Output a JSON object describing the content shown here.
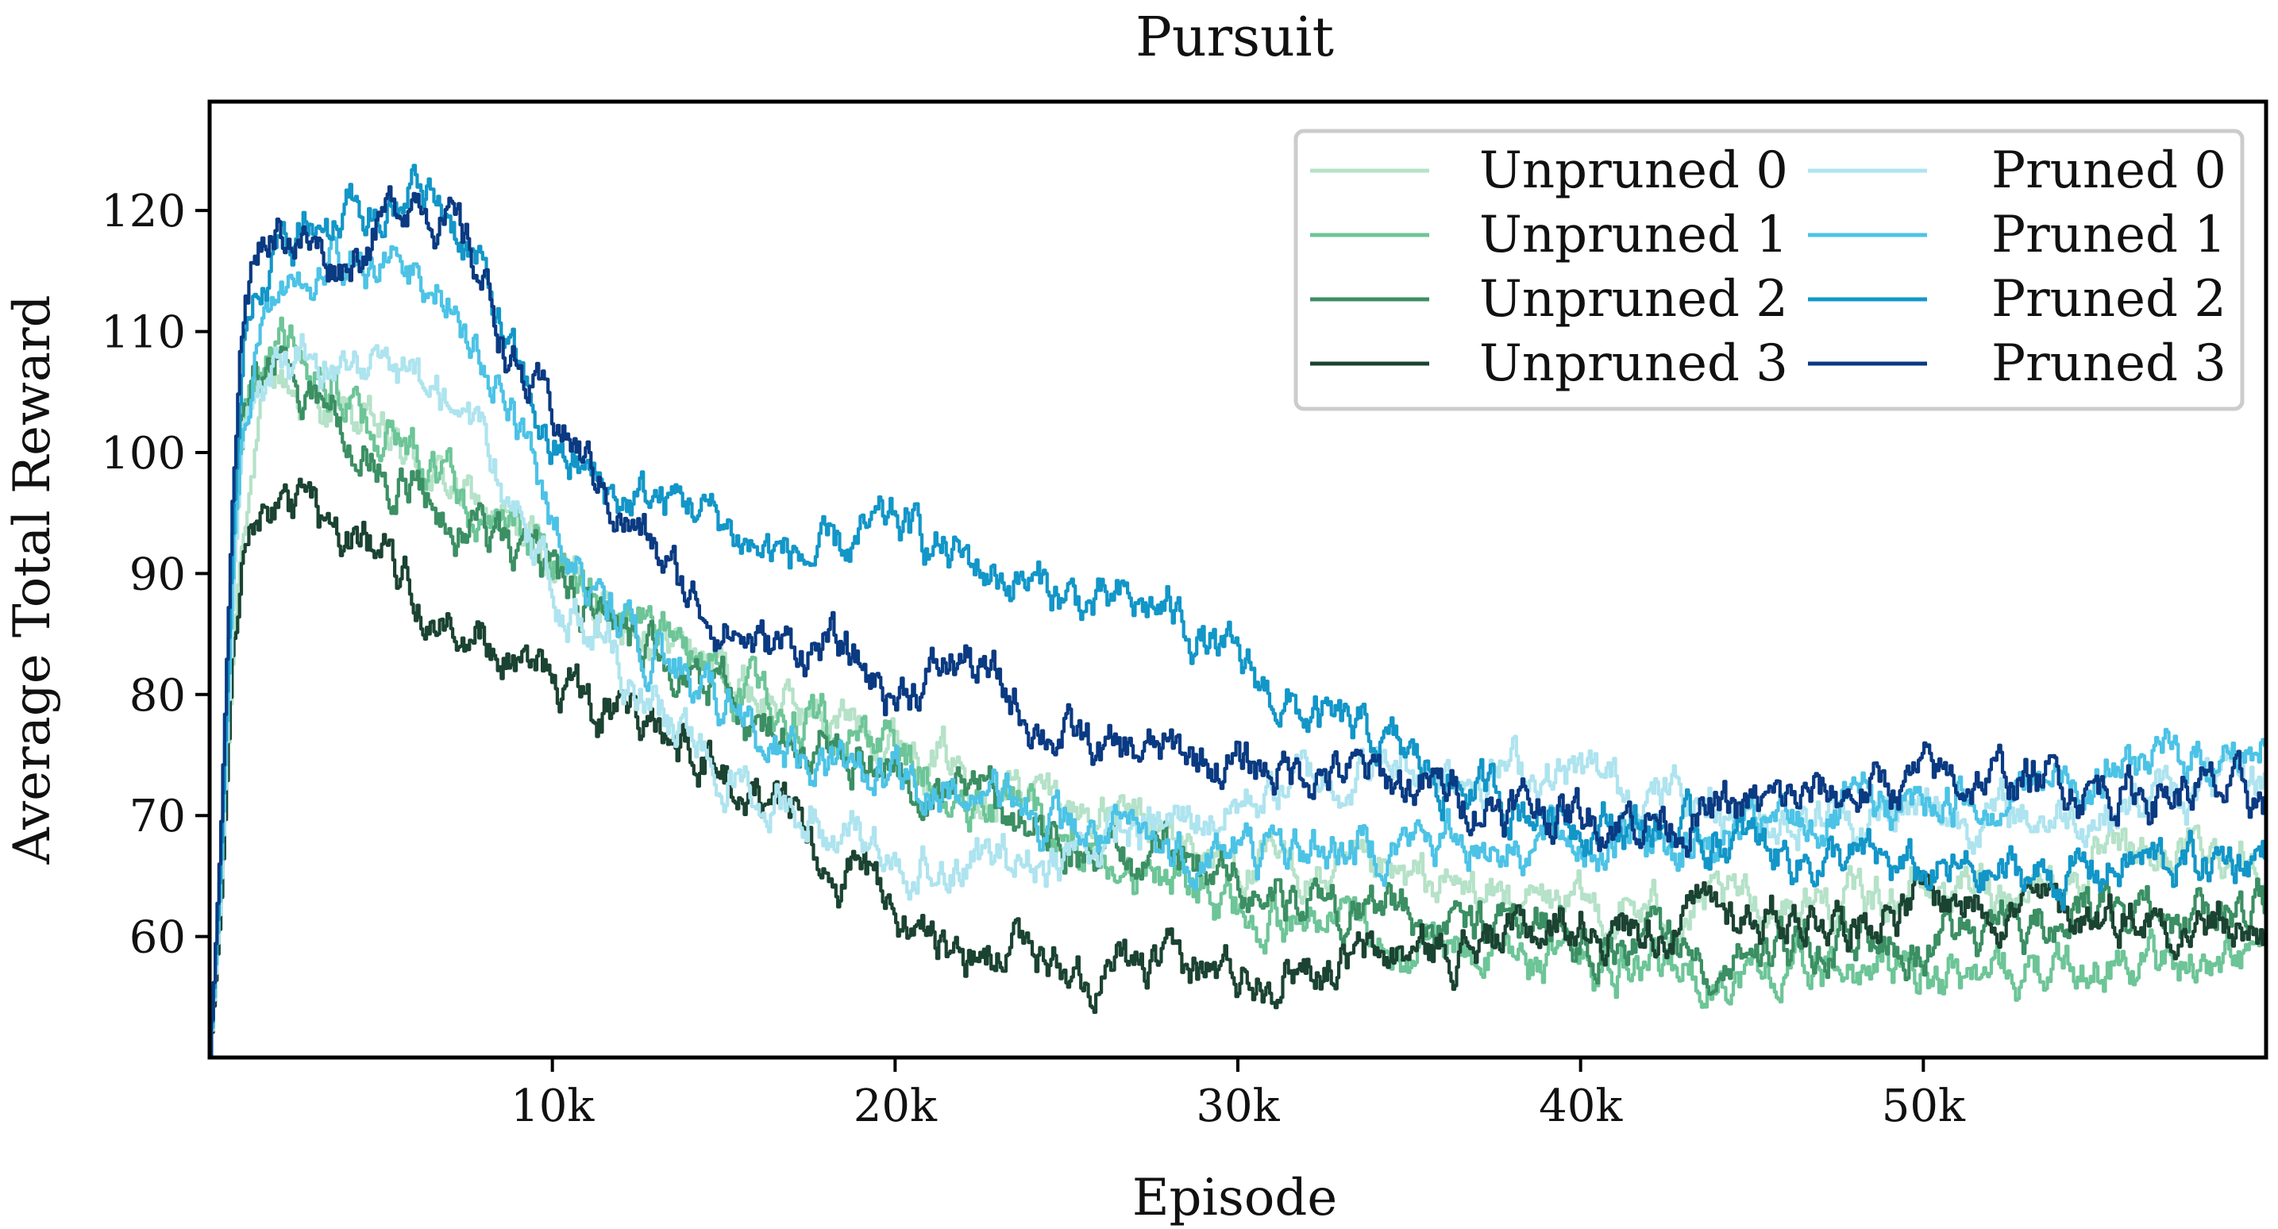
{
  "chart_data": {
    "type": "line",
    "title": "Pursuit",
    "xlabel": "Episode",
    "ylabel": "Average Total Reward",
    "xlim": [
      0,
      60000
    ],
    "ylim": [
      50,
      129
    ],
    "x_ticks": [
      10000,
      20000,
      30000,
      40000,
      50000
    ],
    "x_tick_labels": [
      "10k",
      "20k",
      "30k",
      "40k",
      "50k"
    ],
    "y_ticks": [
      60,
      70,
      80,
      90,
      100,
      110,
      120
    ],
    "y_tick_labels": [
      "60",
      "70",
      "80",
      "90",
      "100",
      "110",
      "120"
    ],
    "grid": false,
    "legend": {
      "placement": "top-right",
      "columns": 2
    },
    "x": [
      0,
      300,
      700,
      1000,
      1500,
      2000,
      2500,
      3000,
      3500,
      4000,
      5000,
      6000,
      7000,
      8000,
      9000,
      10000,
      12000,
      14000,
      16000,
      18000,
      20000,
      22000,
      24000,
      26000,
      28000,
      30000,
      32000,
      34000,
      36000,
      38000,
      40000,
      42000,
      44000,
      46000,
      48000,
      50000,
      52000,
      54000,
      56000,
      58000,
      60000
    ],
    "series": [
      {
        "name": "Unpruned 0",
        "color": "#b5e2c8",
        "values": [
          50,
          62,
          85,
          96,
          103,
          106,
          105,
          104,
          103,
          103,
          101,
          99,
          97,
          95,
          93,
          91,
          87,
          84,
          80,
          78,
          77,
          74,
          72,
          70,
          68,
          66,
          65,
          64,
          64,
          63,
          62,
          62,
          62,
          63,
          63,
          64,
          64,
          65,
          66,
          67,
          67
        ]
      },
      {
        "name": "Unpruned 1",
        "color": "#6dc597",
        "values": [
          50,
          64,
          90,
          102,
          107,
          109,
          108,
          107,
          105,
          104,
          101,
          99,
          97,
          95,
          93,
          91,
          87,
          83,
          80,
          77,
          75,
          72,
          70,
          67,
          64,
          62,
          61,
          60,
          59,
          58,
          58,
          57,
          57,
          57,
          57,
          57,
          57,
          57,
          58,
          58,
          58
        ]
      },
      {
        "name": "Unpruned 2",
        "color": "#3b8f63",
        "values": [
          50,
          64,
          92,
          104,
          106,
          107,
          106,
          105,
          104,
          102,
          99,
          97,
          95,
          93,
          91,
          89,
          85,
          82,
          78,
          76,
          74,
          72,
          69,
          67,
          66,
          64,
          63,
          62,
          61,
          61,
          60,
          60,
          59,
          59,
          60,
          60,
          61,
          61,
          62,
          62,
          62
        ]
      },
      {
        "name": "Unpruned 3",
        "color": "#1b4332",
        "values": [
          50,
          62,
          86,
          92,
          94,
          95,
          95,
          94,
          93,
          93,
          91,
          89,
          87,
          85,
          83,
          81,
          78,
          76,
          72,
          67,
          62,
          59,
          58,
          57,
          57,
          57,
          58,
          58,
          59,
          60,
          61,
          61,
          62,
          62,
          62,
          63,
          63,
          62,
          62,
          61,
          60
        ]
      },
      {
        "name": "Pruned 0",
        "color": "#aee4ef",
        "values": [
          50,
          63,
          90,
          102,
          105,
          107,
          108,
          108,
          108,
          107,
          106,
          105,
          104,
          100,
          95,
          89,
          82,
          76,
          73,
          69,
          67,
          66,
          66,
          68,
          69,
          71,
          73,
          74,
          74,
          74,
          73,
          72,
          71,
          70,
          70,
          70,
          70,
          70,
          71,
          72,
          73
        ]
      },
      {
        "name": "Pruned 1",
        "color": "#4cc3e6",
        "values": [
          50,
          64,
          93,
          104,
          110,
          113,
          114,
          115,
          116,
          115,
          116,
          115,
          113,
          108,
          102,
          94,
          86,
          81,
          77,
          74,
          73,
          72,
          70,
          68,
          67,
          67,
          67,
          68,
          68,
          68,
          68,
          68,
          68,
          69,
          70,
          71,
          72,
          73,
          74,
          75,
          76
        ]
      },
      {
        "name": "Pruned 2",
        "color": "#1296c8",
        "values": [
          50,
          66,
          97,
          110,
          115,
          117,
          118,
          119,
          119,
          120,
          121,
          122,
          120,
          114,
          106,
          100,
          96,
          96,
          92,
          91,
          94,
          91,
          89,
          87,
          87,
          82,
          78,
          76,
          73,
          71,
          70,
          69,
          68,
          67,
          66,
          65,
          65,
          65,
          66,
          66,
          67
        ]
      },
      {
        "name": "Pruned 3",
        "color": "#0a3a82",
        "values": [
          50,
          67,
          100,
          113,
          118,
          119,
          118,
          117,
          116,
          116,
          119,
          122,
          119,
          114,
          106,
          103,
          95,
          88,
          84,
          84,
          80,
          83,
          78,
          75,
          75,
          74,
          74,
          73,
          72,
          71,
          70,
          70,
          70,
          71,
          72,
          73,
          73,
          73,
          72,
          72,
          71
        ]
      }
    ]
  }
}
